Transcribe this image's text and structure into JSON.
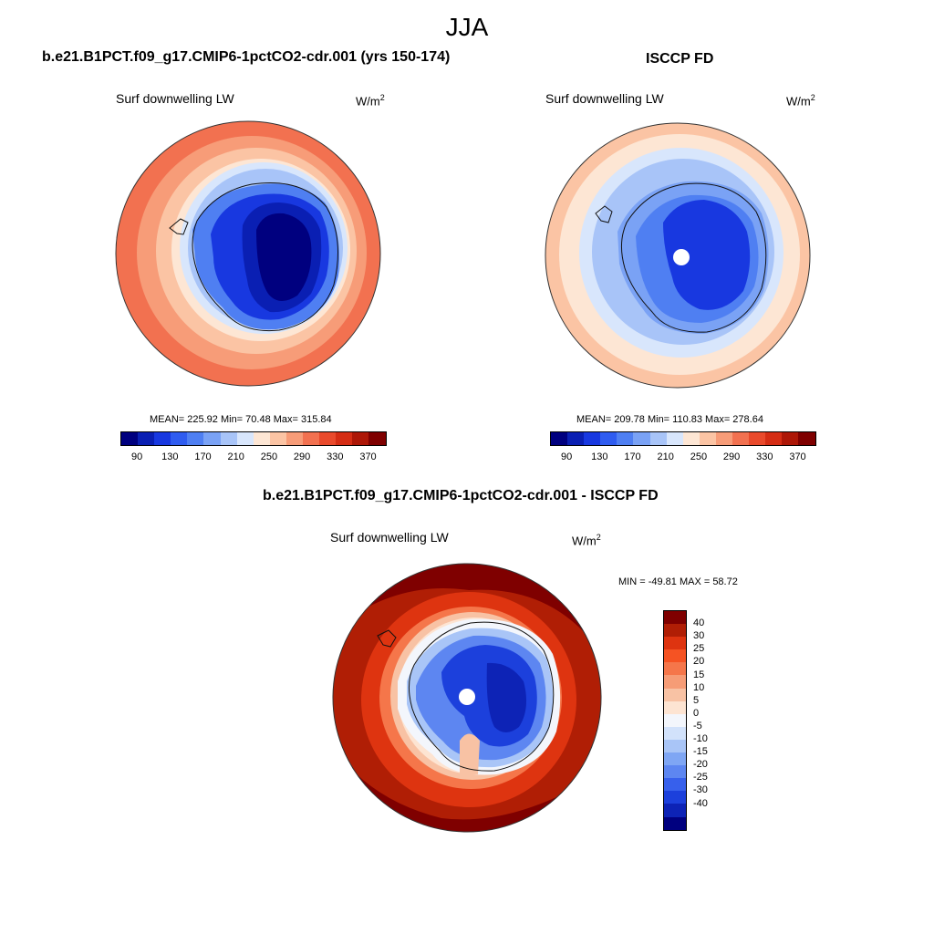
{
  "season": "JJA",
  "panels": [
    {
      "title": "b.e21.B1PCT.f09_g17.CMIP6-1pctCO2-cdr.001 (yrs 150-174)",
      "variable": "Surf downwelling LW",
      "units": "W/m",
      "units_sup": "2",
      "stats": "MEAN= 225.92  Min=  70.48  Max= 315.84"
    },
    {
      "title": "ISCCP FD",
      "variable": "Surf downwelling LW",
      "units": "W/m",
      "units_sup": "2",
      "stats": "MEAN= 209.78  Min= 110.83  Max= 278.64"
    },
    {
      "title": "b.e21.B1PCT.f09_g17.CMIP6-1pctCO2-cdr.001 - ISCCP FD",
      "variable": "Surf downwelling LW",
      "units": "W/m",
      "units_sup": "2",
      "stats": "MIN = -49.81 MAX =  58.72"
    }
  ],
  "colorbar_main": {
    "colors": [
      "#00007f",
      "#0a1fb3",
      "#1838e0",
      "#2f5cf0",
      "#4f7ff2",
      "#7aa2f5",
      "#a8c4f8",
      "#d8e6fc",
      "#fde6d4",
      "#fbc4a4",
      "#f79c78",
      "#f27150",
      "#e94a2c",
      "#d52d14",
      "#ad1707",
      "#7f0000"
    ],
    "tick_labels": [
      "90",
      "130",
      "170",
      "210",
      "250",
      "290",
      "330",
      "370"
    ]
  },
  "colorbar_diff": {
    "colors": [
      "#7f0000",
      "#b01e05",
      "#de3410",
      "#f55323",
      "#f5764a",
      "#f69c76",
      "#f8c2a4",
      "#fde4d2",
      "#f3f6fc",
      "#d2e2fb",
      "#a9c5f7",
      "#7fa6f4",
      "#5d86f1",
      "#3760ec",
      "#1c40dc",
      "#0d23b6",
      "#00007f"
    ],
    "tick_labels": [
      "40",
      "30",
      "25",
      "20",
      "15",
      "10",
      "5",
      "0",
      "-5",
      "-10",
      "-15",
      "-20",
      "-25",
      "-30",
      "-40"
    ]
  }
}
